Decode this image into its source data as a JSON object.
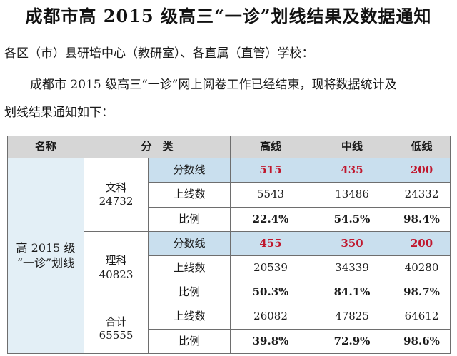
{
  "doc": {
    "title": "成都市高 2015 级高三“一诊”划线结果及数据通知",
    "salutation": "各区（市）县研培中心（教研室）、各直属（直管）学校：",
    "body_line1": "成都市 2015 级高三“一诊”网上阅卷工作已经结束，现将数据统计及",
    "body_line2": "划线结果通知如下："
  },
  "table": {
    "headers": {
      "name": "名称",
      "category": "分　类",
      "high": "高线",
      "mid": "中线",
      "low": "低线"
    },
    "group_label_line1": "高 2015 级",
    "group_label_line2": "“一诊”划线",
    "wenke": {
      "label": "文科",
      "count": "24732",
      "score_label": "分数线",
      "score": {
        "high": "515",
        "mid": "435",
        "low": "200"
      },
      "pass_label": "上线数",
      "pass": {
        "high": "5543",
        "mid": "13486",
        "low": "24332"
      },
      "ratio_label": "比例",
      "ratio": {
        "high": "22.4%",
        "mid": "54.5%",
        "low": "98.4%"
      }
    },
    "like": {
      "label": "理科",
      "count": "40823",
      "score_label": "分数线",
      "score": {
        "high": "455",
        "mid": "350",
        "low": "200"
      },
      "pass_label": "上线数",
      "pass": {
        "high": "20539",
        "mid": "34339",
        "low": "40280"
      },
      "ratio_label": "比例",
      "ratio": {
        "high": "50.3%",
        "mid": "84.1%",
        "low": "98.7%"
      }
    },
    "total": {
      "label": "合计",
      "count": "65555",
      "pass_label": "上线数",
      "pass": {
        "high": "26082",
        "mid": "47825",
        "low": "64612"
      },
      "ratio_label": "比例",
      "ratio": {
        "high": "39.8%",
        "mid": "72.9%",
        "low": "98.6%"
      }
    }
  },
  "colors": {
    "header_bg": "#d6d6d6",
    "highlight_bg": "#c9dfee",
    "score_red": "#c0172d"
  }
}
